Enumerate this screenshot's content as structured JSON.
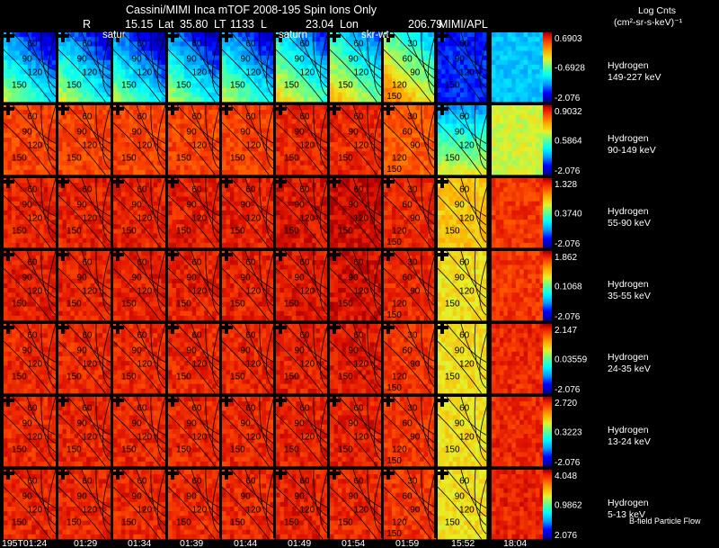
{
  "header": {
    "line1": "Cassini/MIMI Inca mTOF  2008-195   Spin    Ions Only",
    "line2": {
      "r": "R",
      "r_val": "15.15",
      "lat": "Lat",
      "lat_val": "35.80",
      "lt": "LT",
      "lt_val": "1133",
      "l": "L",
      "l_val": "23.04",
      "lon": "Lon",
      "lon_val": "206.79"
    },
    "credit": "MIMI/APL",
    "units_line1": "Log Cnts",
    "units_line2": "(cm²-sr-s-keV)⁻¹",
    "frame_labels": [
      "satur",
      "saturn",
      "skr-wt"
    ],
    "footer_note": "B-field  Particle Flow"
  },
  "contour_labels": {
    "standard": [
      "60",
      "90",
      "120",
      "150"
    ],
    "panel8": [
      "30",
      "60",
      "90",
      "120",
      "150"
    ]
  },
  "time_labels": [
    "195T01:24",
    "01:29",
    "01:34",
    "01:39",
    "01:44",
    "01:49",
    "01:54",
    "01:59",
    "15:52",
    "18:04"
  ],
  "colors": {
    "background": "#000000",
    "text": "#ffffff",
    "gridline": "#000000"
  },
  "chart_data": {
    "type": "heatmap",
    "colormap": "rainbow (blue → cyan → green → yellow → orange → red)",
    "columns": [
      "195T01:24",
      "01:29",
      "01:34",
      "01:39",
      "01:44",
      "01:49",
      "01:54",
      "01:59",
      "15:52",
      "18:04"
    ],
    "energy_bands": [
      {
        "species": "Hydrogen",
        "energy": "149-227 keV",
        "cmax": "0.6903",
        "cmid": "-0.6928",
        "cmin": "-2.076",
        "levels": [
          0.3,
          0.32,
          0.28,
          0.3,
          0.32,
          0.4,
          0.45,
          0.55,
          0.15,
          0.3
        ]
      },
      {
        "species": "Hydrogen",
        "energy": "90-149 keV",
        "cmax": "0.9032",
        "cmid": "0.5864",
        "cmin": "-2.076",
        "levels": [
          0.88,
          0.88,
          0.88,
          0.88,
          0.88,
          0.92,
          0.92,
          0.85,
          0.45,
          0.6
        ]
      },
      {
        "species": "Hydrogen",
        "energy": "55-90 keV",
        "cmax": "1.328",
        "cmid": "0.3740",
        "cmin": "-2.076",
        "levels": [
          0.93,
          0.93,
          0.93,
          0.93,
          0.93,
          0.95,
          0.97,
          0.92,
          0.7,
          0.9
        ]
      },
      {
        "species": "Hydrogen",
        "energy": "35-55 keV",
        "cmax": "1.862",
        "cmid": "0.1068",
        "cmin": "-2.076",
        "levels": [
          0.93,
          0.93,
          0.93,
          0.93,
          0.93,
          0.94,
          0.96,
          0.92,
          0.65,
          0.9
        ]
      },
      {
        "species": "Hydrogen",
        "energy": "24-35 keV",
        "cmax": "2.147",
        "cmid": "0.03559",
        "cmin": "-2.076",
        "levels": [
          0.92,
          0.92,
          0.92,
          0.92,
          0.92,
          0.93,
          0.94,
          0.9,
          0.65,
          0.92
        ]
      },
      {
        "species": "Hydrogen",
        "energy": "13-24 keV",
        "cmax": "2.720",
        "cmid": "0.3223",
        "cmin": "-2.076",
        "levels": [
          0.92,
          0.92,
          0.92,
          0.92,
          0.92,
          0.93,
          0.93,
          0.9,
          0.65,
          0.92
        ]
      },
      {
        "species": "Hydrogen",
        "energy": "5-13 keV",
        "cmax": "4.048",
        "cmid": "0.9862",
        "cmin": "2.076",
        "levels": [
          0.92,
          0.92,
          0.92,
          0.92,
          0.92,
          0.93,
          0.92,
          0.9,
          0.65,
          0.93
        ]
      }
    ]
  }
}
